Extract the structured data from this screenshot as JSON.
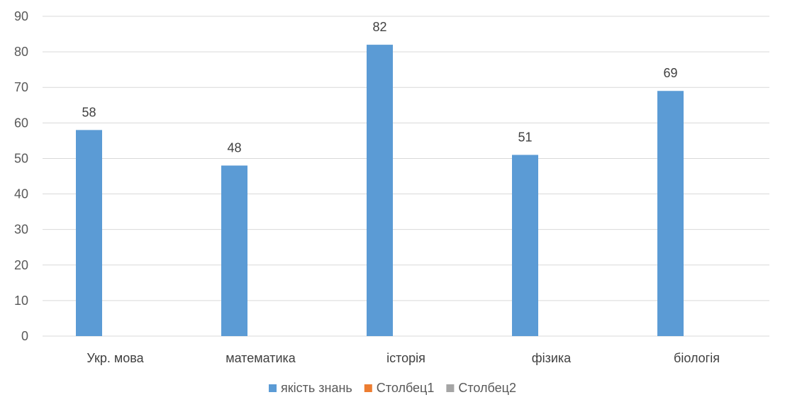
{
  "chart_data": {
    "type": "bar",
    "title": "",
    "xlabel": "",
    "ylabel": "",
    "categories": [
      "Укр. мова",
      "математика",
      "історія",
      "фізика",
      "біологія"
    ],
    "series": [
      {
        "name": "якість знань",
        "values": [
          58,
          48,
          82,
          51,
          69
        ],
        "color": "#5B9BD5"
      },
      {
        "name": "Столбец1",
        "values": [
          null,
          null,
          null,
          null,
          null
        ],
        "color": "#ED7D31"
      },
      {
        "name": "Столбец2",
        "values": [
          null,
          null,
          null,
          null,
          null
        ],
        "color": "#A5A5A5"
      }
    ],
    "ylim": [
      0,
      90
    ],
    "y_ticks": [
      0,
      10,
      20,
      30,
      40,
      50,
      60,
      70,
      80,
      90
    ],
    "grid": true,
    "legend_position": "bottom",
    "colors": {
      "gridline": "#D9D9D9",
      "axis_text": "#595959"
    }
  }
}
